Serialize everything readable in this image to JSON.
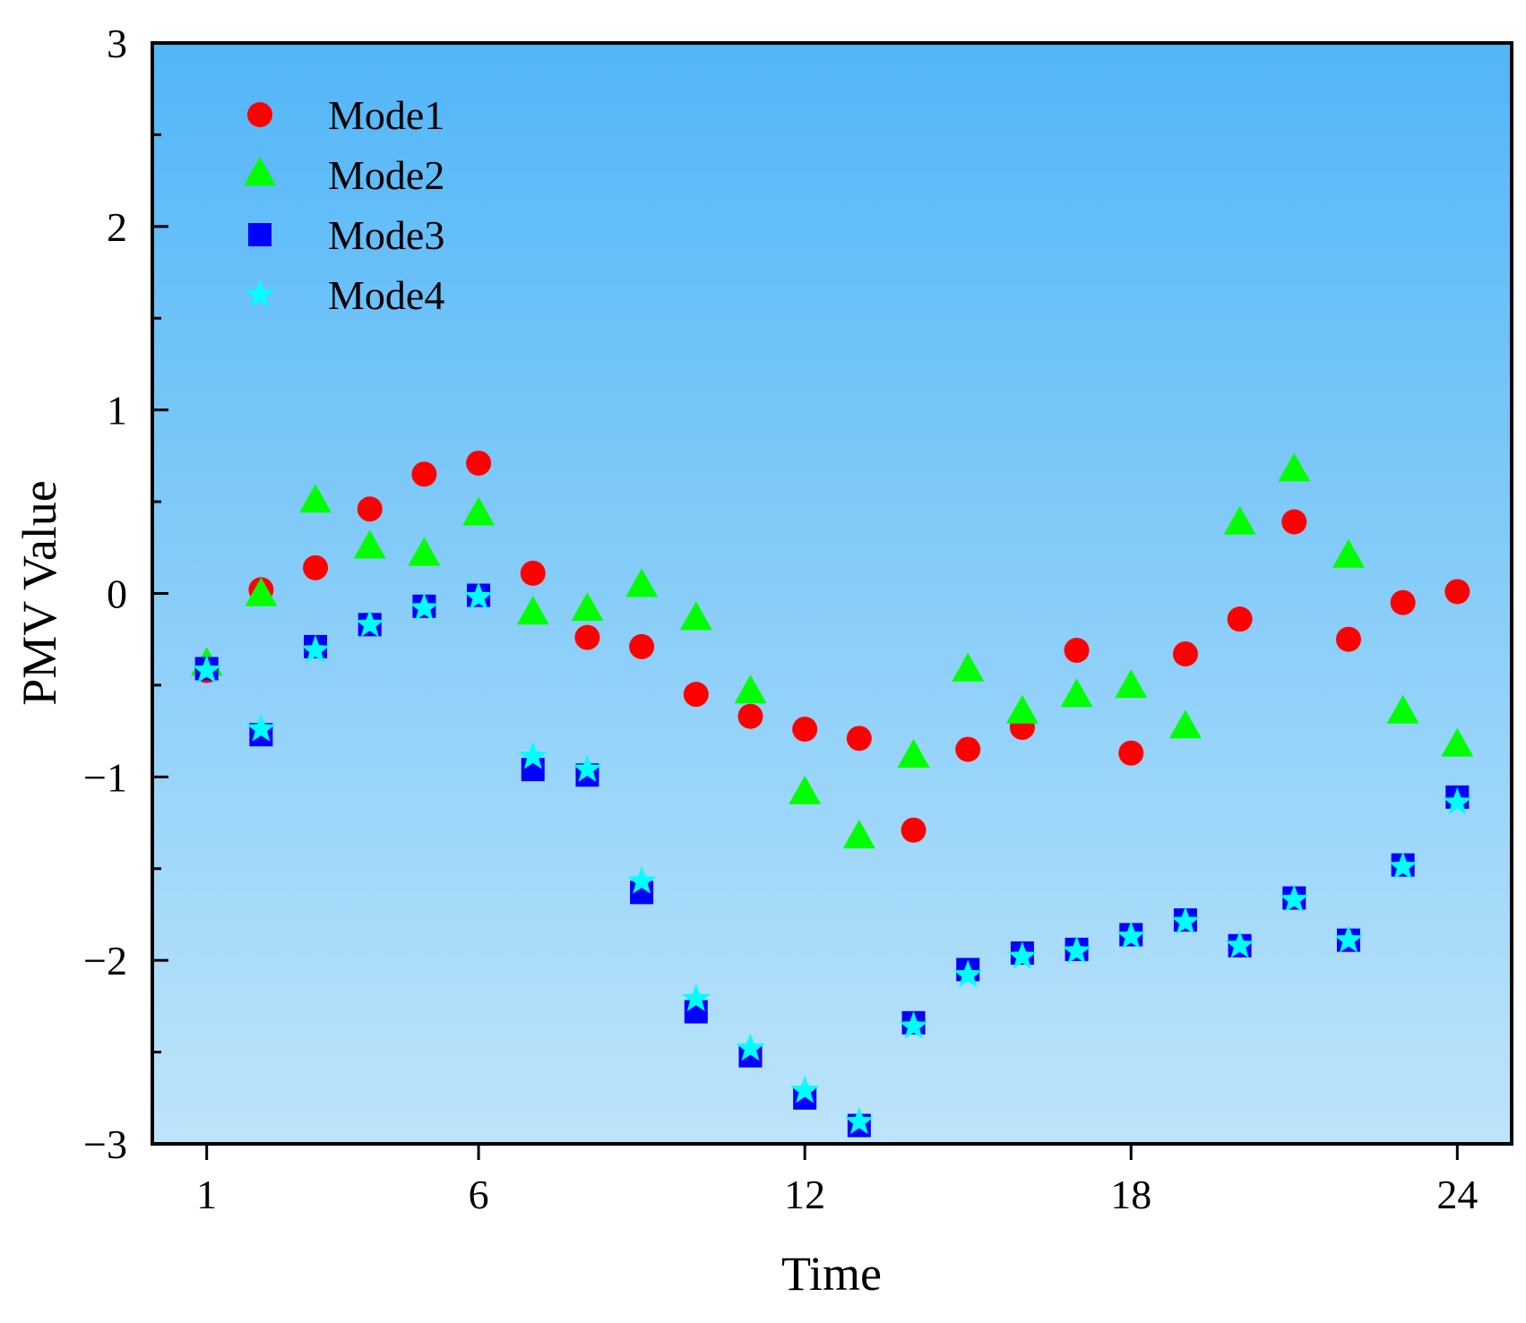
{
  "chart_data": {
    "type": "scatter",
    "title": "",
    "xlabel": "Time",
    "ylabel": "PMV Value",
    "xlim": [
      0,
      25
    ],
    "ylim": [
      -3,
      3
    ],
    "xticks": [
      1,
      6,
      12,
      18,
      24
    ],
    "xtick_labels": [
      "1",
      "6",
      "12",
      "18",
      "24"
    ],
    "yticks": [
      -3,
      -2,
      -1,
      0,
      1,
      2,
      3
    ],
    "ytick_labels": [
      "−3",
      "−2",
      "−1",
      "0",
      "1",
      "2",
      "3"
    ],
    "background": {
      "top": "#52b6f7",
      "bottom": "#bde4fa"
    },
    "legend_position": "top-left",
    "x": [
      1,
      2,
      3,
      4,
      5,
      6,
      7,
      8,
      9,
      10,
      11,
      12,
      13,
      14,
      15,
      16,
      17,
      18,
      19,
      20,
      21,
      22,
      23,
      24
    ],
    "series": [
      {
        "name": "Mode1",
        "marker": "circle",
        "color": "#ff0000",
        "values": [
          -0.42,
          0.02,
          0.14,
          0.46,
          0.65,
          0.71,
          0.11,
          -0.24,
          -0.29,
          -0.55,
          -0.67,
          -0.74,
          -0.79,
          -1.29,
          -0.85,
          -0.73,
          -0.31,
          -0.87,
          -0.33,
          -0.14,
          0.39,
          -0.25,
          -0.05,
          0.01
        ]
      },
      {
        "name": "Mode2",
        "marker": "triangle",
        "color": "#00ff00",
        "values": [
          -0.39,
          -0.01,
          0.5,
          0.25,
          0.21,
          0.43,
          -0.11,
          -0.09,
          0.04,
          -0.14,
          -0.54,
          -1.09,
          -1.33,
          -0.89,
          -0.42,
          -0.65,
          -0.56,
          -0.51,
          -0.73,
          0.38,
          0.67,
          0.2,
          -0.65,
          -0.83
        ]
      },
      {
        "name": "Mode3",
        "marker": "square",
        "color": "#0000ff",
        "values": [
          -0.41,
          -0.77,
          -0.29,
          -0.17,
          -0.07,
          -0.01,
          -0.96,
          -0.99,
          -1.63,
          -2.28,
          -2.52,
          -2.75,
          -2.9,
          -2.34,
          -2.05,
          -1.96,
          -1.94,
          -1.86,
          -1.78,
          -1.92,
          -1.66,
          -1.89,
          -1.48,
          -1.11
        ]
      },
      {
        "name": "Mode4",
        "marker": "star",
        "color": "#00ffff",
        "values": [
          -0.42,
          -0.74,
          -0.31,
          -0.17,
          -0.08,
          -0.02,
          -0.89,
          -0.96,
          -1.57,
          -2.21,
          -2.48,
          -2.71,
          -2.88,
          -2.36,
          -2.08,
          -1.98,
          -1.95,
          -1.87,
          -1.79,
          -1.92,
          -1.67,
          -1.89,
          -1.49,
          -1.14
        ]
      }
    ]
  }
}
